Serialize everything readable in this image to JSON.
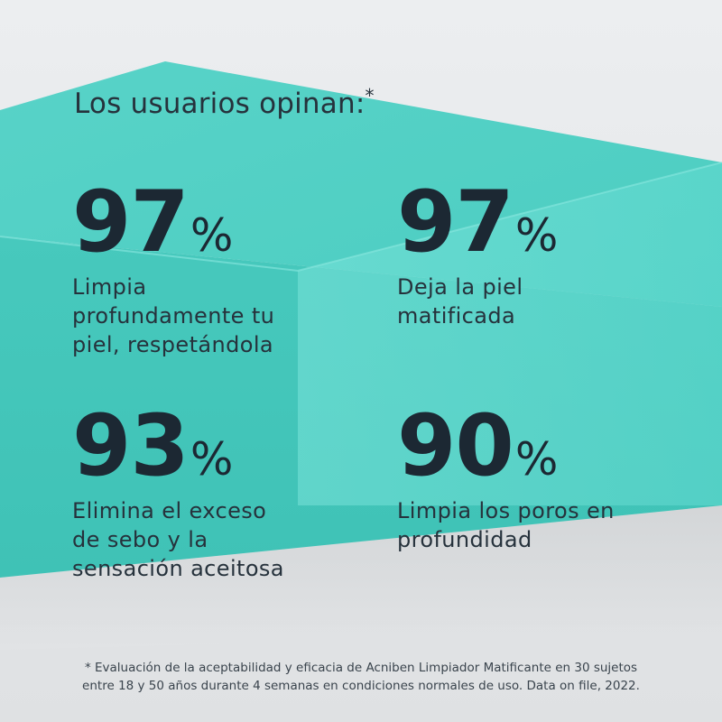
{
  "heading": {
    "text": "Los usuarios opinan:",
    "asterisk": "*"
  },
  "stats": [
    {
      "value": "97",
      "unit": "%",
      "lines": [
        "Limpia",
        "profundamente tu",
        "piel, respetándola"
      ]
    },
    {
      "value": "97",
      "unit": "%",
      "lines": [
        "Deja la piel",
        "matificada"
      ]
    },
    {
      "value": "93",
      "unit": "%",
      "lines": [
        "Elimina el exceso",
        "de sebo y la",
        "sensación aceitosa"
      ]
    },
    {
      "value": "90",
      "unit": "%",
      "lines": [
        "Limpia los poros en",
        "profundidad"
      ]
    }
  ],
  "footnote": {
    "line1": "* Evaluación de la aceptabilidad y eficacia de Acniben Limpiador Matificante en 30 sujetos",
    "line2": "entre 18 y 50 años durante 4 semanas en condiciones normales de uso. Data on file, 2022."
  },
  "colors": {
    "teal_main": "#4fd0c4",
    "teal_light": "#72e0d7",
    "teal_dark": "#3ebdb1",
    "background": "#e6e8ea",
    "text": "#1c2833"
  }
}
